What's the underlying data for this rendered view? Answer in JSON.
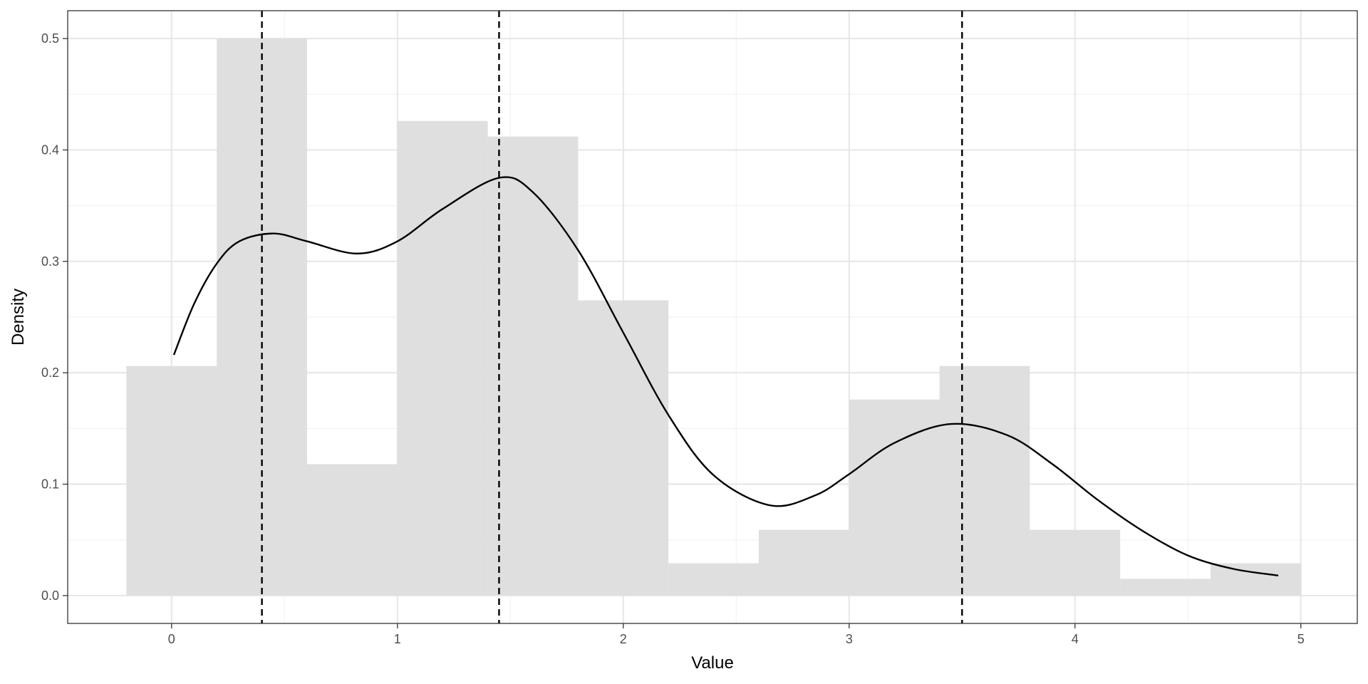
{
  "chart_data": {
    "type": "bar",
    "title": "",
    "xlabel": "Value",
    "ylabel": "Density",
    "xlim": [
      -0.46,
      5.25
    ],
    "ylim": [
      -0.025,
      0.525
    ],
    "x_ticks": [
      0,
      1,
      2,
      3,
      4,
      5
    ],
    "y_ticks": [
      0.0,
      0.1,
      0.2,
      0.3,
      0.4,
      0.5
    ],
    "x_tick_labels": [
      "0",
      "1",
      "2",
      "3",
      "4",
      "5"
    ],
    "y_tick_labels": [
      "0.0",
      "0.1",
      "0.2",
      "0.3",
      "0.4",
      "0.5"
    ],
    "grid": true,
    "legend": "none",
    "colors": {
      "bars": "#dfdfdf",
      "curve": "#000000",
      "grid_major": "#e6e6e6",
      "grid_minor": "#f2f2f2",
      "panel_border": "#333333"
    },
    "histogram": {
      "bin_edges": [
        -0.2,
        0.2,
        0.6,
        1.0,
        1.4,
        1.8,
        2.2,
        2.6,
        3.0,
        3.4,
        3.8,
        4.2,
        4.6,
        5.0
      ],
      "densities": [
        0.206,
        0.5,
        0.118,
        0.426,
        0.412,
        0.265,
        0.029,
        0.059,
        0.176,
        0.206,
        0.059,
        0.015,
        0.029
      ]
    },
    "density_curve": {
      "x": [
        0.01,
        0.1,
        0.2,
        0.3,
        0.45,
        0.6,
        0.82,
        1.0,
        1.2,
        1.45,
        1.6,
        1.8,
        2.0,
        2.2,
        2.4,
        2.65,
        2.85,
        3.0,
        3.2,
        3.45,
        3.7,
        3.9,
        4.1,
        4.3,
        4.5,
        4.7,
        4.9
      ],
      "y": [
        0.216,
        0.262,
        0.298,
        0.318,
        0.325,
        0.318,
        0.307,
        0.318,
        0.347,
        0.375,
        0.362,
        0.31,
        0.236,
        0.162,
        0.108,
        0.081,
        0.09,
        0.109,
        0.137,
        0.154,
        0.144,
        0.118,
        0.086,
        0.058,
        0.036,
        0.024,
        0.018
      ]
    },
    "vlines": [
      0.4,
      1.45,
      3.5
    ]
  }
}
